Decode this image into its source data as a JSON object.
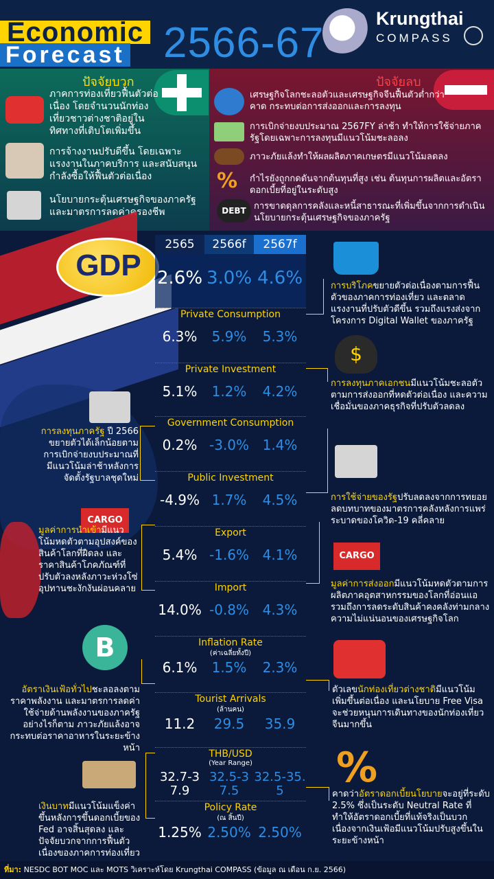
{
  "header": {
    "title_line1": "Economic",
    "title_line2": "Forecast",
    "year_range": "2566-67",
    "brand_name": "Krungthai",
    "brand_sub": "COMPASS"
  },
  "positive": {
    "title": "ปัจจัยบวก",
    "items": [
      "ภาคการท่องเที่ยวฟื้นตัวต่อเนื่อง โดยจำนวนนักท่องเที่ยวชาวต่างชาติอยู่ในทิศทางที่เติบโตเพิ่มขึ้น",
      "การจ้างงานปรับดีขึ้น โดยเฉพาะแรงงานในภาคบริการ และสนับสนุนกำลังซื้อให้ฟื้นตัวต่อเนื่อง",
      "นโยบายกระตุ้นเศรษฐกิจของภาครัฐและมาตรการลดค่าครองชีพ"
    ]
  },
  "negative": {
    "title": "ปัจจัยลบ",
    "items": [
      "เศรษฐกิจโลกชะลอตัวและเศรษฐกิจจีนฟื้นตัวต่ำกว่าคาด กระทบต่อการส่งออกและการลงทุน",
      "การเบิกจ่ายงบประมาณ 2567FY ล่าช้า ทำให้การใช้จ่ายภาครัฐโดยเฉพาะการลงทุนมีแนวโน้มชะลอลง",
      "ภาวะภัยแล้งทำให้ผลผลิตภาคเกษตรมีแนวโน้มลดลง",
      "กำไรยังถูกกดดันจากต้นทุนที่สูง เช่น ต้นทุนการผลิตและอัตราดอกเบี้ยที่อยู่ในระดับสูง",
      "การขาดดุลการคลังและหนี้สาธารณะที่เพิ่มขึ้นจากการดำเนินนโยบายกระตุ้นเศรษฐกิจของภาครัฐ"
    ],
    "debt_label": "DEBT"
  },
  "columns": [
    "2565",
    "2566f",
    "2567f"
  ],
  "gdp": {
    "label": "GDP",
    "values": [
      "2.6%",
      "3.0%",
      "4.6%"
    ]
  },
  "indicators": [
    {
      "label": "Private Consumption",
      "sub": "",
      "values": [
        "6.3%",
        "5.9%",
        "5.3%"
      ]
    },
    {
      "label": "Private Investment",
      "sub": "",
      "values": [
        "5.1%",
        "1.2%",
        "4.2%"
      ]
    },
    {
      "label": "Government Consumption",
      "sub": "",
      "values": [
        "0.2%",
        "-3.0%",
        "1.4%"
      ]
    },
    {
      "label": "Public Investment",
      "sub": "",
      "values": [
        "-4.9%",
        "1.7%",
        "4.5%"
      ]
    },
    {
      "label": "Export",
      "sub": "",
      "values": [
        "5.4%",
        "-1.6%",
        "4.1%"
      ]
    },
    {
      "label": "Import",
      "sub": "",
      "values": [
        "14.0%",
        "-0.8%",
        "4.3%"
      ]
    },
    {
      "label": "Inflation Rate",
      "sub": "(ค่าเฉลี่ยทั้งปี)",
      "values": [
        "6.1%",
        "1.5%",
        "2.3%"
      ]
    },
    {
      "label": "Tourist Arrivals",
      "sub": "(ล้านคน)",
      "values": [
        "11.2",
        "29.5",
        "35.9"
      ]
    },
    {
      "label": "THB/USD",
      "sub": "(Year Range)",
      "values": [
        "32.7-37.9",
        "32.5-37.5",
        "32.5-35.5"
      ]
    },
    {
      "label": "Policy Rate",
      "sub": "(ณ สิ้นปี)",
      "values": [
        "1.25%",
        "2.50%",
        "2.50%"
      ]
    }
  ],
  "notes": {
    "consumption": {
      "hl": "การบริโภค",
      "text": "ขยายตัวต่อเนื่องตามการฟื้นตัวของภาคการท่องเที่ยว และตลาดแรงงานที่ปรับตัวดีขึ้น รวมถึงแรงส่งจากโครงการ Digital Wallet ของภาครัฐ"
    },
    "private_inv": {
      "hl": "การลงทุนภาคเอกชน",
      "text": "มีแนวโน้มชะลอตัวตามการส่งออกที่หดตัวต่อเนื่อง และความเชื่อมั่นของภาคธุรกิจที่ปรับตัวลดลง"
    },
    "public_inv": {
      "hl": "การลงทุนภาครัฐ",
      "text": "ปี 2566 ขยายตัวได้เล็กน้อยตามการเบิกจ่ายงบประมาณที่มีแนวโน้มล่าช้าหลังการจัดตั้งรัฐบาลชุดใหม่"
    },
    "gov_spend": {
      "hl": "การใช้จ่ายของรัฐ",
      "text": "ปรับลดลงจากการทยอยลดบทบาทของมาตรการคลังหลังการแพร่ระบาดของโควิด-19 คลี่คลาย"
    },
    "import": {
      "hl": "มูลค่าการนำเข้า",
      "text": "มีแนวโน้มหดตัวตามอุปสงค์ของสินค้าโลกที่ฝืดลง และราคาสินค้าโภคภัณฑ์ที่ปรับตัวลงหลังภาวะห่วงโซ่อุปทานชะงักงันผ่อนคลาย"
    },
    "export": {
      "hl": "มูลค่าการส่งออก",
      "text": "มีแนวโน้มหดตัวตามการผลิตภาคอุตสาหกรรมของโลกที่อ่อนแอ รวมถึงการลดระดับสินค้าคงคลังท่ามกลางความไม่แน่นอนของเศรษฐกิจโลก"
    },
    "inflation": {
      "hl": "อัตราเงินเฟ้อทั่วไป",
      "text": "ชะลอลงตามราคาพลังงาน และมาตรการลดค่าใช้จ่ายด้านพลังงานของภาครัฐ อย่างไรก็ตาม ภาวะภัยแล้งอาจกระทบต่อราคาอาหารในระยะข้างหน้า"
    },
    "tourist": {
      "pre": "ตัวเลข",
      "hl": "นักท่องเที่ยวต่างชาติ",
      "text": "มีแนวโน้มเพิ่มขึ้นต่อเนื่อง และนโยบาย Free Visa จะช่วยหนุนการเดินทางของนักท่องเที่ยวจีนมากขึ้น"
    },
    "baht": {
      "hl": "เงินบาท",
      "text": "มีแนวโน้มแข็งค่าขึ้นหลังการขึ้นดอกเบี้ยของ Fed อาจสิ้นสุดลง และปัจจัยบวกจากการฟื้นตัวเนื่องของภาคการท่องเที่ยว"
    },
    "policy": {
      "pre": "คาดว่า",
      "hl": "อัตราดอกเบี้ยนโยบาย",
      "text": "จะอยู่ที่ระดับ 2.5% ซึ่งเป็นระดับ Neutral Rate ที่ทำให้อัตราดอกเบี้ยที่แท้จริงเป็นบวก เนื่องจากเงินเฟ้อมีแนวโน้มปรับสูงขึ้นในระยะข้างหน้า"
    }
  },
  "icons": {
    "cargo_label": "CARGO",
    "bitcoin_symbol": "B",
    "percent_symbol": "%",
    "dollar_symbol": "$"
  },
  "footer": {
    "label": "ที่มา:",
    "text": " NESDC BOT MOC และ MOTS วิเคราะห์โดย Krungthai COMPASS  (ข้อมูล ณ เดือน ก.ย. 2566)"
  }
}
